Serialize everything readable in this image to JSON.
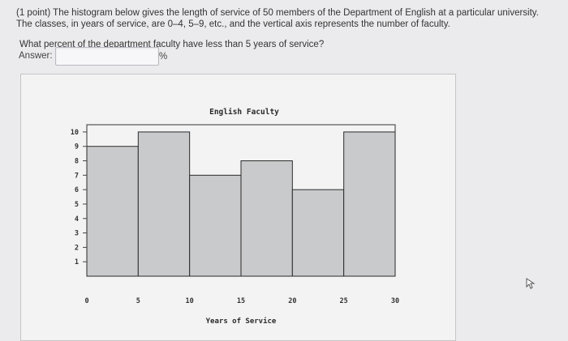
{
  "question": {
    "text": "(1 point) The histogram below gives the length of service of 50 members of the Department of English at a particular university. The classes, in years of service, are 0–4, 5–9, etc., and the vertical axis represents the number of faculty.",
    "prompt": "What percent of the department faculty have less than 5 years of service?",
    "answer_label": "Answer:",
    "answer_value": "",
    "answer_unit": "%"
  },
  "colors": {
    "bar_fill": "#c8cacb",
    "bar_stroke": "#2b2b2b",
    "page_bg": "#ebebed"
  },
  "chart_data": {
    "type": "bar",
    "title": "English Faculty",
    "xlabel": "Years of Service",
    "ylabel": "",
    "bin_edges": [
      0,
      5,
      10,
      15,
      20,
      25,
      30
    ],
    "categories": [
      "0–4",
      "5–9",
      "10–14",
      "15–19",
      "20–24",
      "25–29"
    ],
    "values": [
      9,
      10,
      7,
      8,
      6,
      10
    ],
    "x_ticks": [
      "0",
      "5",
      "10",
      "15",
      "20",
      "25",
      "30"
    ],
    "y_ticks": [
      "1",
      "2",
      "3",
      "4",
      "5",
      "6",
      "7",
      "8",
      "9",
      "10"
    ],
    "xlim": [
      0,
      30
    ],
    "ylim": [
      0,
      10.5
    ],
    "grid": false,
    "legend": "none"
  }
}
